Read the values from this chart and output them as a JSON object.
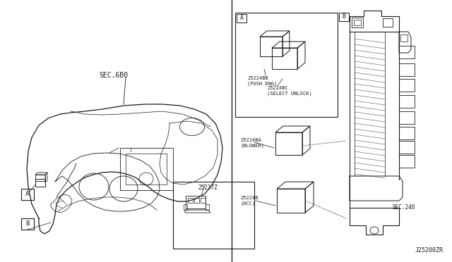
{
  "bg_color": "#ffffff",
  "line_color": "#1a1a1a",
  "text_color": "#1a1a1a",
  "diagram_number": "J25200ZR",
  "sec680": "SEC.6B0",
  "sec240": "SEC.240",
  "figsize": [
    6.4,
    3.72
  ],
  "dpi": 100
}
